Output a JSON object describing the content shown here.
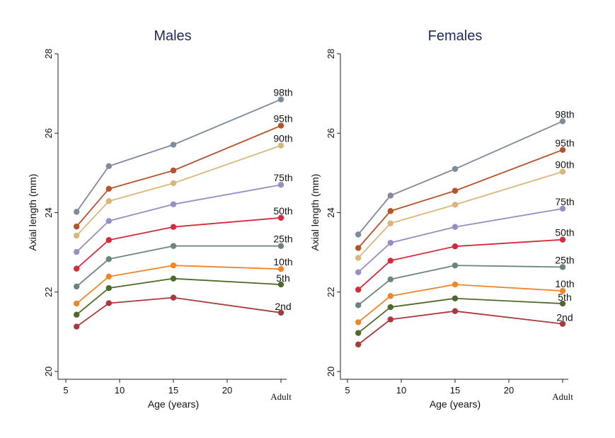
{
  "chart_data": [
    {
      "type": "line",
      "title": "Males",
      "xlabel": "Age (years)",
      "ylabel": "Axial length (mm)",
      "x": [
        6,
        9,
        15,
        25
      ],
      "x_tick_values": [
        5,
        10,
        15,
        20,
        25
      ],
      "x_tick_labels": [
        "5",
        "10",
        "15",
        "20",
        "Adult"
      ],
      "ylim": [
        20,
        28
      ],
      "y_ticks": [
        20,
        22,
        24,
        26,
        28
      ],
      "grid": false,
      "series": [
        {
          "name": "98th",
          "color": "#7f8a9a",
          "values": [
            24.02,
            25.17,
            25.71,
            26.85
          ]
        },
        {
          "name": "95th",
          "color": "#b5532a",
          "values": [
            23.65,
            24.6,
            25.06,
            26.19
          ]
        },
        {
          "name": "90th",
          "color": "#d9b77a",
          "values": [
            23.42,
            24.29,
            24.74,
            25.69
          ]
        },
        {
          "name": "75th",
          "color": "#9a8cc4",
          "values": [
            23.01,
            23.79,
            24.21,
            24.7
          ]
        },
        {
          "name": "50th",
          "color": "#d8283c",
          "values": [
            22.59,
            23.31,
            23.64,
            23.87
          ]
        },
        {
          "name": "25th",
          "color": "#6c8480",
          "values": [
            22.14,
            22.83,
            23.16,
            23.16
          ]
        },
        {
          "name": "10th",
          "color": "#f0862a",
          "values": [
            21.71,
            22.39,
            22.67,
            22.58
          ]
        },
        {
          "name": "5th",
          "color": "#4e6a2a",
          "values": [
            21.43,
            22.1,
            22.34,
            22.19
          ]
        },
        {
          "name": "2nd",
          "color": "#a83a3a",
          "values": [
            21.13,
            21.72,
            21.86,
            21.48
          ]
        }
      ]
    },
    {
      "type": "line",
      "title": "Females",
      "xlabel": "Age (years)",
      "ylabel": "Axial length (mm)",
      "x": [
        6,
        9,
        15,
        25
      ],
      "x_tick_values": [
        5,
        10,
        15,
        20,
        25
      ],
      "x_tick_labels": [
        "5",
        "10",
        "15",
        "20",
        "Adult"
      ],
      "ylim": [
        20,
        28
      ],
      "y_ticks": [
        20,
        22,
        24,
        26,
        28
      ],
      "grid": false,
      "series": [
        {
          "name": "98th",
          "color": "#7f8a9a",
          "values": [
            23.45,
            24.43,
            25.1,
            26.3
          ]
        },
        {
          "name": "95th",
          "color": "#b5532a",
          "values": [
            23.11,
            24.04,
            24.55,
            25.58
          ]
        },
        {
          "name": "90th",
          "color": "#d9b77a",
          "values": [
            22.86,
            23.73,
            24.2,
            25.03
          ]
        },
        {
          "name": "75th",
          "color": "#9a8cc4",
          "values": [
            22.5,
            23.24,
            23.64,
            24.1
          ]
        },
        {
          "name": "50th",
          "color": "#d8283c",
          "values": [
            22.06,
            22.79,
            23.15,
            23.32
          ]
        },
        {
          "name": "25th",
          "color": "#6c8480",
          "values": [
            21.67,
            22.32,
            22.67,
            22.63
          ]
        },
        {
          "name": "10th",
          "color": "#f0862a",
          "values": [
            21.24,
            21.9,
            22.19,
            22.03
          ]
        },
        {
          "name": "5th",
          "color": "#4e6a2a",
          "values": [
            20.97,
            21.62,
            21.84,
            21.71
          ]
        },
        {
          "name": "2nd",
          "color": "#a83a3a",
          "values": [
            20.68,
            21.31,
            21.52,
            21.2
          ]
        }
      ]
    }
  ]
}
